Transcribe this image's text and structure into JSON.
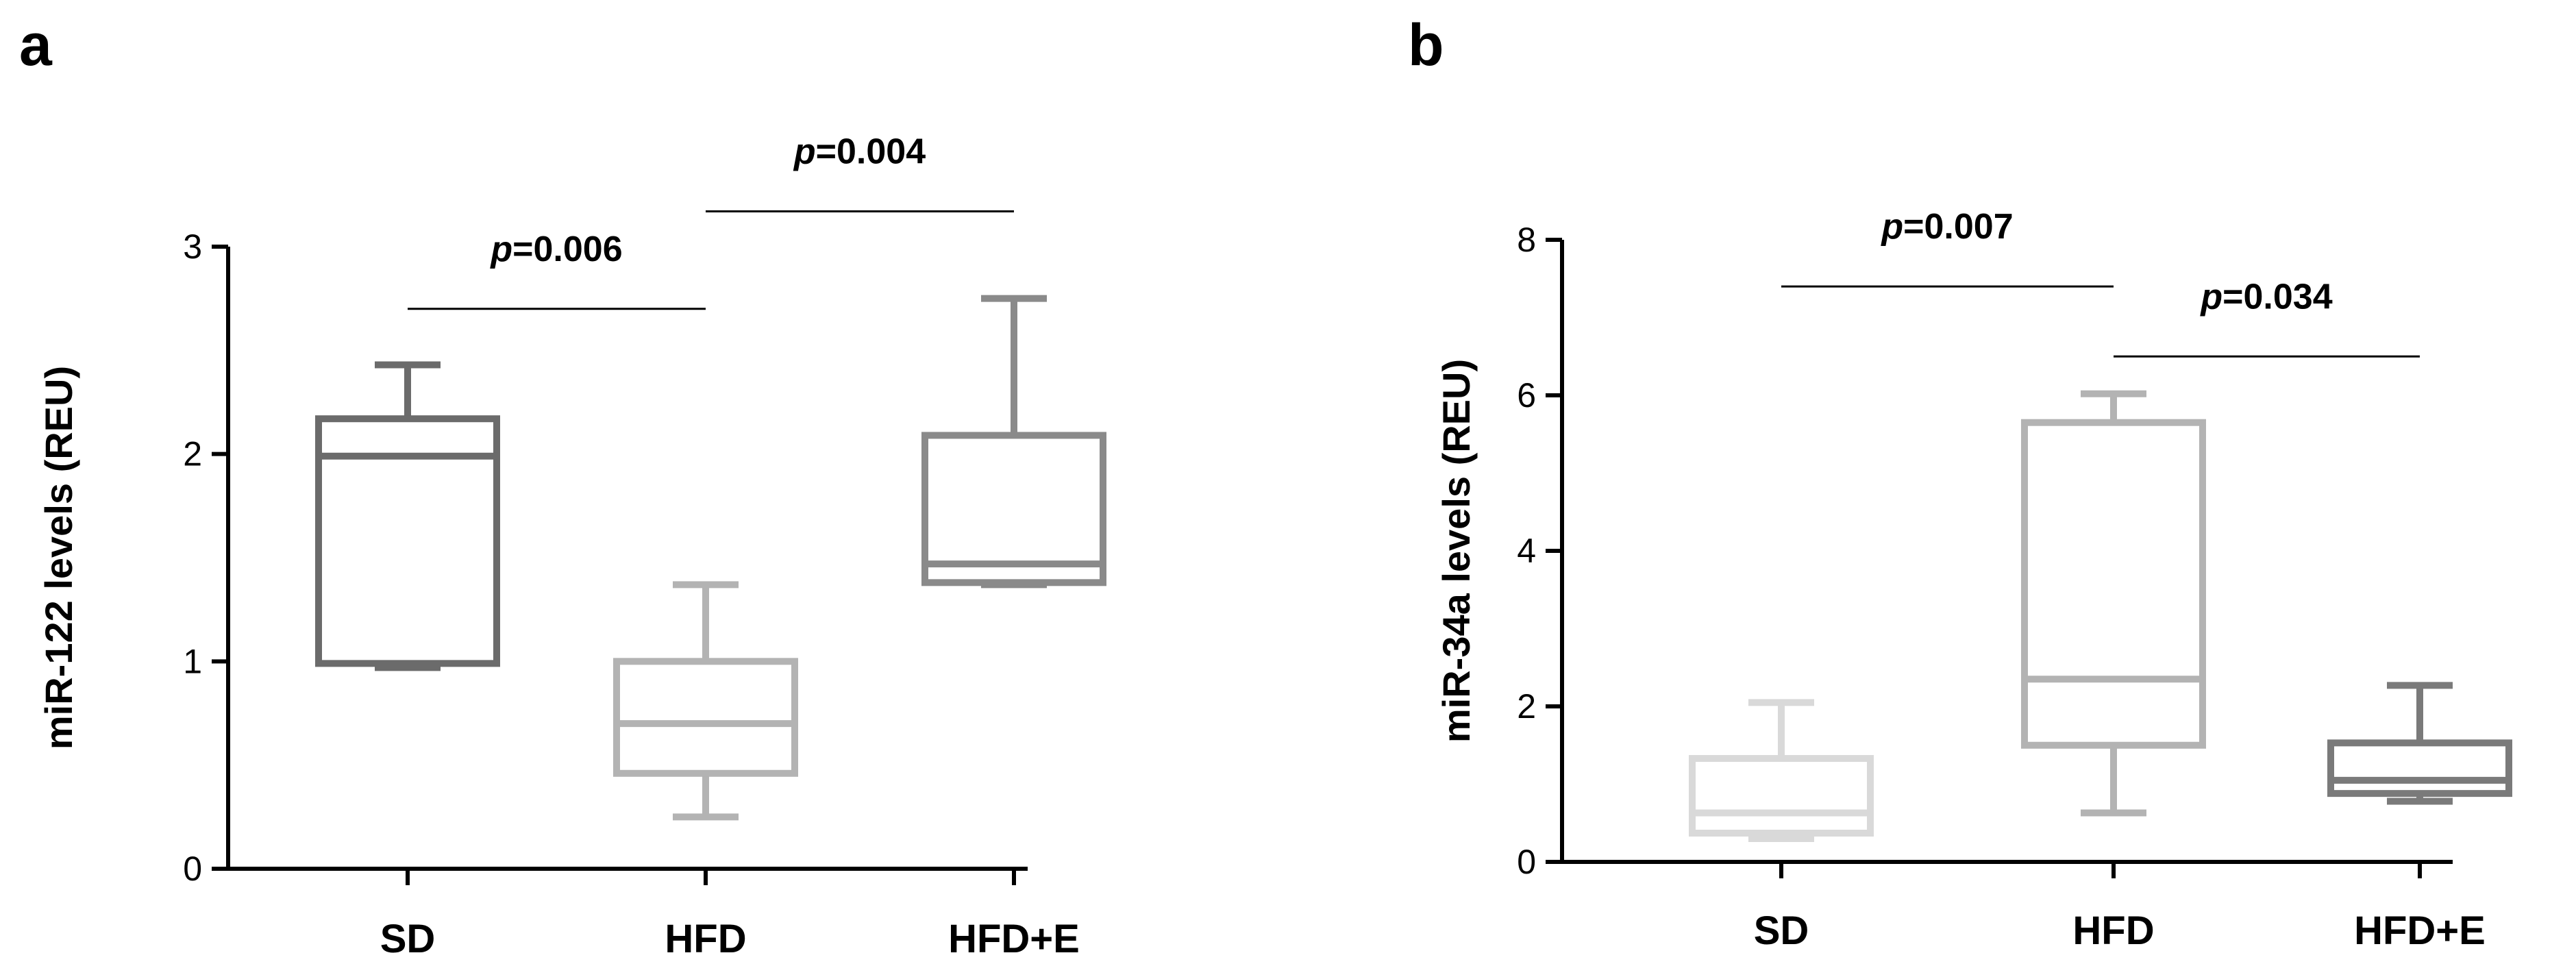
{
  "chart_data": [
    {
      "type": "boxplot",
      "panel_label": "a",
      "ylabel": "miR-122 levels (REU)",
      "ylim": [
        0,
        3
      ],
      "yticks": [
        0,
        1,
        2,
        3
      ],
      "categories": [
        "SD",
        "HFD",
        "HFD+E"
      ],
      "boxes": [
        {
          "min": 0.97,
          "q1": 0.99,
          "median": 1.99,
          "q3": 2.17,
          "max": 2.43,
          "color": "#6b6b6b"
        },
        {
          "min": 0.25,
          "q1": 0.46,
          "median": 0.7,
          "q3": 1.0,
          "max": 1.37,
          "color": "#b3b3b3"
        },
        {
          "min": 1.37,
          "q1": 1.38,
          "median": 1.47,
          "q3": 2.09,
          "max": 2.75,
          "color": "#8a8a8a"
        }
      ],
      "annotations": [
        {
          "italic": "p",
          "value": "=0.006",
          "from": 0,
          "to": 1,
          "y": 2.7
        },
        {
          "italic": "p",
          "value": "=0.004",
          "from": 1,
          "to": 2,
          "y": 3.17
        }
      ]
    },
    {
      "type": "boxplot",
      "panel_label": "b",
      "ylabel": "miR-34a levels (REU)",
      "ylim": [
        0,
        8
      ],
      "yticks": [
        0,
        2,
        4,
        6,
        8
      ],
      "categories": [
        "SD",
        "HFD",
        "HFD+E"
      ],
      "boxes": [
        {
          "min": 0.3,
          "q1": 0.37,
          "median": 0.63,
          "q3": 1.33,
          "max": 2.05,
          "color": "#d9d9d9"
        },
        {
          "min": 0.63,
          "q1": 1.5,
          "median": 2.35,
          "q3": 5.65,
          "max": 6.02,
          "color": "#b3b3b3"
        },
        {
          "min": 0.78,
          "q1": 0.88,
          "median": 1.05,
          "q3": 1.53,
          "max": 2.27,
          "color": "#7a7a7a"
        }
      ],
      "annotations": [
        {
          "italic": "p",
          "value": "=0.007",
          "from": 0,
          "to": 1,
          "y": 7.4
        },
        {
          "italic": "p",
          "value": "=0.034",
          "from": 1,
          "to": 2,
          "y": 6.5
        }
      ]
    }
  ]
}
